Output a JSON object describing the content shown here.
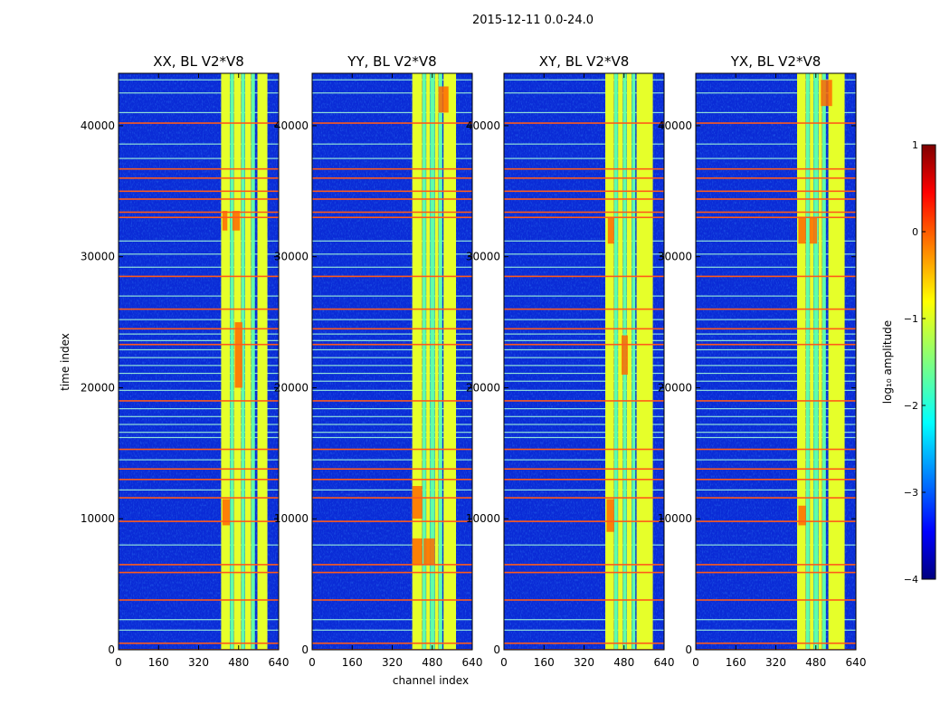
{
  "figure": {
    "suptitle": "2015-12-11 0.0-24.0"
  },
  "chart_data": {
    "type": "heatmap",
    "x": {
      "label": "channel index",
      "range": [
        0,
        640
      ],
      "ticks": [
        0,
        160,
        320,
        480,
        640
      ],
      "tick_labels": [
        "0",
        "160",
        "320",
        "480",
        "640"
      ]
    },
    "y": {
      "label": "time index",
      "range": [
        0,
        44000
      ],
      "ticks": [
        0,
        10000,
        20000,
        30000,
        40000
      ],
      "tick_labels": [
        "0",
        "10000",
        "20000",
        "30000",
        "40000"
      ]
    },
    "panels": [
      {
        "title": "XX, BL V2*V8",
        "bands": [
          [
            410,
            445
          ],
          [
            446,
            460
          ],
          [
            461,
            490
          ],
          [
            491,
            505
          ],
          [
            506,
            530
          ],
          [
            531,
            545
          ],
          [
            555,
            595
          ]
        ],
        "hot": [
          [
            415,
            435,
            32000,
            33500
          ],
          [
            455,
            485,
            32000,
            33500
          ],
          [
            415,
            445,
            9500,
            11500
          ],
          [
            465,
            495,
            20000,
            25000
          ]
        ]
      },
      {
        "title": "YY, BL V2*V8",
        "bands": [
          [
            400,
            440
          ],
          [
            441,
            455
          ],
          [
            456,
            470
          ],
          [
            471,
            490
          ],
          [
            491,
            505
          ],
          [
            506,
            520
          ],
          [
            525,
            575
          ]
        ],
        "hot": [
          [
            400,
            440,
            6500,
            8500
          ],
          [
            445,
            490,
            6500,
            8500
          ],
          [
            400,
            440,
            10000,
            12500
          ],
          [
            505,
            545,
            41000,
            43000
          ]
        ]
      },
      {
        "title": "XY, BL V2*V8",
        "bands": [
          [
            405,
            440
          ],
          [
            441,
            455
          ],
          [
            456,
            475
          ],
          [
            476,
            490
          ],
          [
            491,
            510
          ],
          [
            511,
            525
          ],
          [
            530,
            595
          ]
        ],
        "hot": [
          [
            415,
            440,
            31000,
            33000
          ],
          [
            410,
            440,
            9000,
            11500
          ],
          [
            470,
            495,
            21000,
            24000
          ]
        ]
      },
      {
        "title": "YX, BL V2*V8",
        "bands": [
          [
            405,
            440
          ],
          [
            441,
            455
          ],
          [
            456,
            470
          ],
          [
            471,
            490
          ],
          [
            491,
            505
          ],
          [
            506,
            520
          ],
          [
            530,
            595
          ]
        ],
        "hot": [
          [
            410,
            440,
            31000,
            33000
          ],
          [
            455,
            485,
            31000,
            33000
          ],
          [
            410,
            440,
            9500,
            11000
          ],
          [
            500,
            545,
            41500,
            43500
          ]
        ]
      }
    ],
    "horizontal_lines": {
      "red": [
        0,
        500,
        3800,
        5900,
        6500,
        9800,
        11600,
        13000,
        13800,
        15300,
        19000,
        23300,
        24500,
        26000,
        28500,
        33000,
        33400,
        34400,
        35000,
        36000,
        36700,
        40200
      ],
      "light": [
        1500,
        2300,
        8000,
        12200,
        14500,
        16200,
        16600,
        17200,
        17800,
        18400,
        19800,
        20500,
        21100,
        21700,
        22300,
        22900,
        23600,
        24100,
        25200,
        27000,
        29200,
        30200,
        31200,
        37500,
        38600,
        41000,
        42500,
        43500
      ]
    },
    "colorbar": {
      "label": "log₁₀ amplitude",
      "range": [
        -4,
        1
      ],
      "ticks": [
        -4,
        -3,
        -2,
        -1,
        0,
        1
      ],
      "tick_labels": [
        "−4",
        "−3",
        "−2",
        "−1",
        "0",
        "1"
      ],
      "colormap": "jet"
    }
  }
}
